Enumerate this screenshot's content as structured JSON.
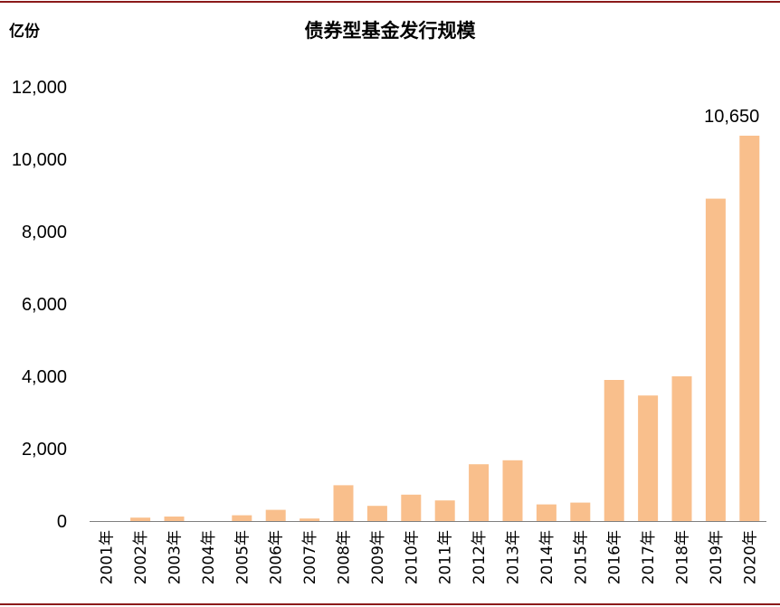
{
  "header": {
    "unit_label": "亿份",
    "title": "债券型基金发行规模"
  },
  "colors": {
    "bar": "#f9bf8c",
    "axis": "#7f7f7f",
    "rule": "#8b1a1a"
  },
  "chart_data": {
    "type": "bar",
    "title": "债券型基金发行规模",
    "ylabel": "亿份",
    "xlabel": "",
    "ylim": [
      0,
      12000
    ],
    "yticks": [
      "0",
      "2,000",
      "4,000",
      "6,000",
      "8,000",
      "10,000",
      "12,000"
    ],
    "ytick_values": [
      0,
      2000,
      4000,
      6000,
      8000,
      10000,
      12000
    ],
    "grid": false,
    "categories": [
      "2001年",
      "2002年",
      "2003年",
      "2004年",
      "2005年",
      "2006年",
      "2007年",
      "2008年",
      "2009年",
      "2010年",
      "2011年",
      "2012年",
      "2013年",
      "2014年",
      "2015年",
      "2016年",
      "2017年",
      "2018年",
      "2019年",
      "2020年"
    ],
    "values": [
      0,
      95,
      125,
      0,
      160,
      310,
      70,
      990,
      420,
      730,
      570,
      1570,
      1680,
      460,
      510,
      3900,
      3470,
      4000,
      8910,
      10650
    ],
    "data_labels": [
      {
        "index": 19,
        "text": "10,650"
      }
    ]
  }
}
